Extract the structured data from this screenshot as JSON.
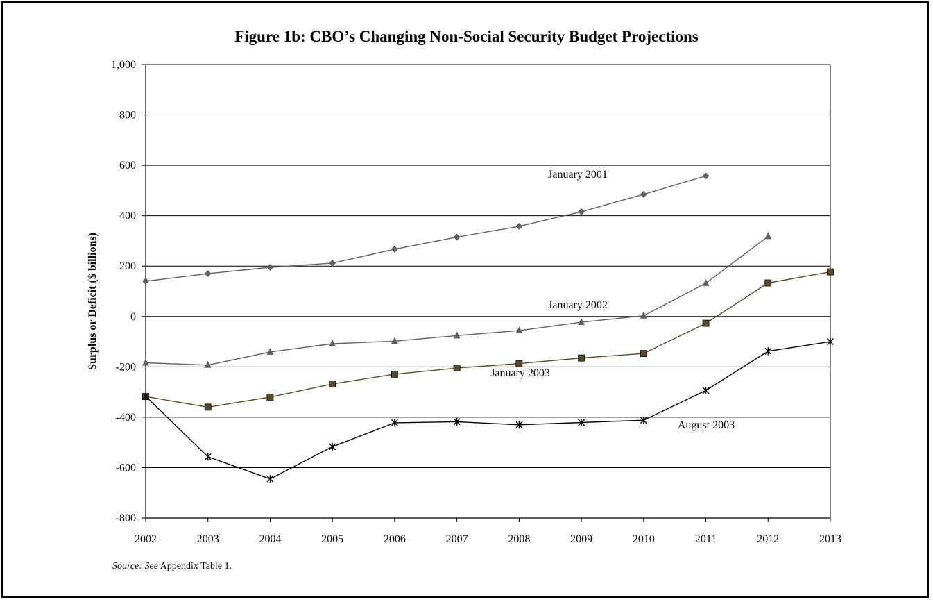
{
  "chart_data": {
    "type": "line",
    "title": "Figure 1b: CBO’s Changing Non-Social Security Budget Projections",
    "ylabel": "Surplus or Deficit ($ billions)",
    "xlabel": "",
    "x": [
      "2002",
      "2003",
      "2004",
      "2005",
      "2006",
      "2007",
      "2008",
      "2009",
      "2010",
      "2011",
      "2012",
      "2013"
    ],
    "ylim": [
      -800,
      1000
    ],
    "yticks": [
      1000,
      800,
      600,
      400,
      200,
      0,
      -200,
      -400,
      -600,
      -800
    ],
    "ytick_labels": [
      "1,000",
      "800",
      "600",
      "400",
      "200",
      "0",
      "-200",
      "-400",
      "-600",
      "-800"
    ],
    "grid": "horizontal",
    "series": [
      {
        "name": "January 2001",
        "marker": "diamond",
        "color": "#606060",
        "values": [
          140,
          170,
          195,
          212,
          267,
          315,
          358,
          416,
          485,
          558,
          null,
          null
        ]
      },
      {
        "name": "January 2002",
        "marker": "triangle",
        "color": "#606060",
        "values": [
          -184,
          -193,
          -141,
          -108,
          -98,
          -76,
          -56,
          -23,
          3,
          132,
          318,
          null
        ]
      },
      {
        "name": "January 2003",
        "marker": "square",
        "color": "#5a4a2a",
        "values": [
          -318,
          -360,
          -320,
          -268,
          -229,
          -205,
          -187,
          -165,
          -147,
          -27,
          133,
          177
        ]
      },
      {
        "name": "August 2003",
        "marker": "star",
        "color": "#000000",
        "values": [
          -317,
          -557,
          -645,
          -517,
          -422,
          -418,
          -430,
          -421,
          -412,
          -294,
          -138,
          -100
        ]
      }
    ]
  },
  "source": {
    "prefix": "Source: See",
    "text": " Appendix Table 1."
  }
}
